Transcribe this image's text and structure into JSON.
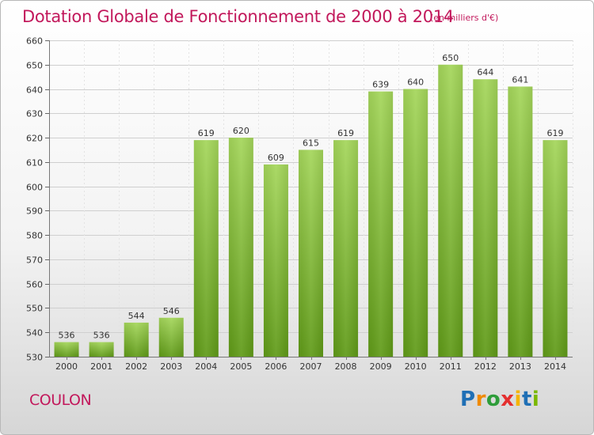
{
  "header": {
    "title": "Dotation Globale de Fonctionnement de 2000 à 2014",
    "unit": "(en milliers d'€)"
  },
  "footer": {
    "commune": "COULON",
    "logo": "Proxiti"
  },
  "colors": {
    "title": "#c2185b",
    "bar_top": "#a4d65a",
    "bar_bottom": "#5f9a17",
    "grid": "#c8c8c8"
  },
  "chart_data": {
    "type": "bar",
    "categories": [
      "2000",
      "2001",
      "2002",
      "2003",
      "2004",
      "2005",
      "2006",
      "2007",
      "2008",
      "2009",
      "2010",
      "2011",
      "2012",
      "2013",
      "2014"
    ],
    "values": [
      536,
      536,
      544,
      546,
      619,
      620,
      609,
      615,
      619,
      639,
      640,
      650,
      644,
      641,
      619
    ],
    "ylim": [
      530,
      660
    ],
    "yticks": [
      530,
      540,
      550,
      560,
      570,
      580,
      590,
      600,
      610,
      620,
      630,
      640,
      650,
      660
    ],
    "grid": true,
    "data_labels": true
  }
}
